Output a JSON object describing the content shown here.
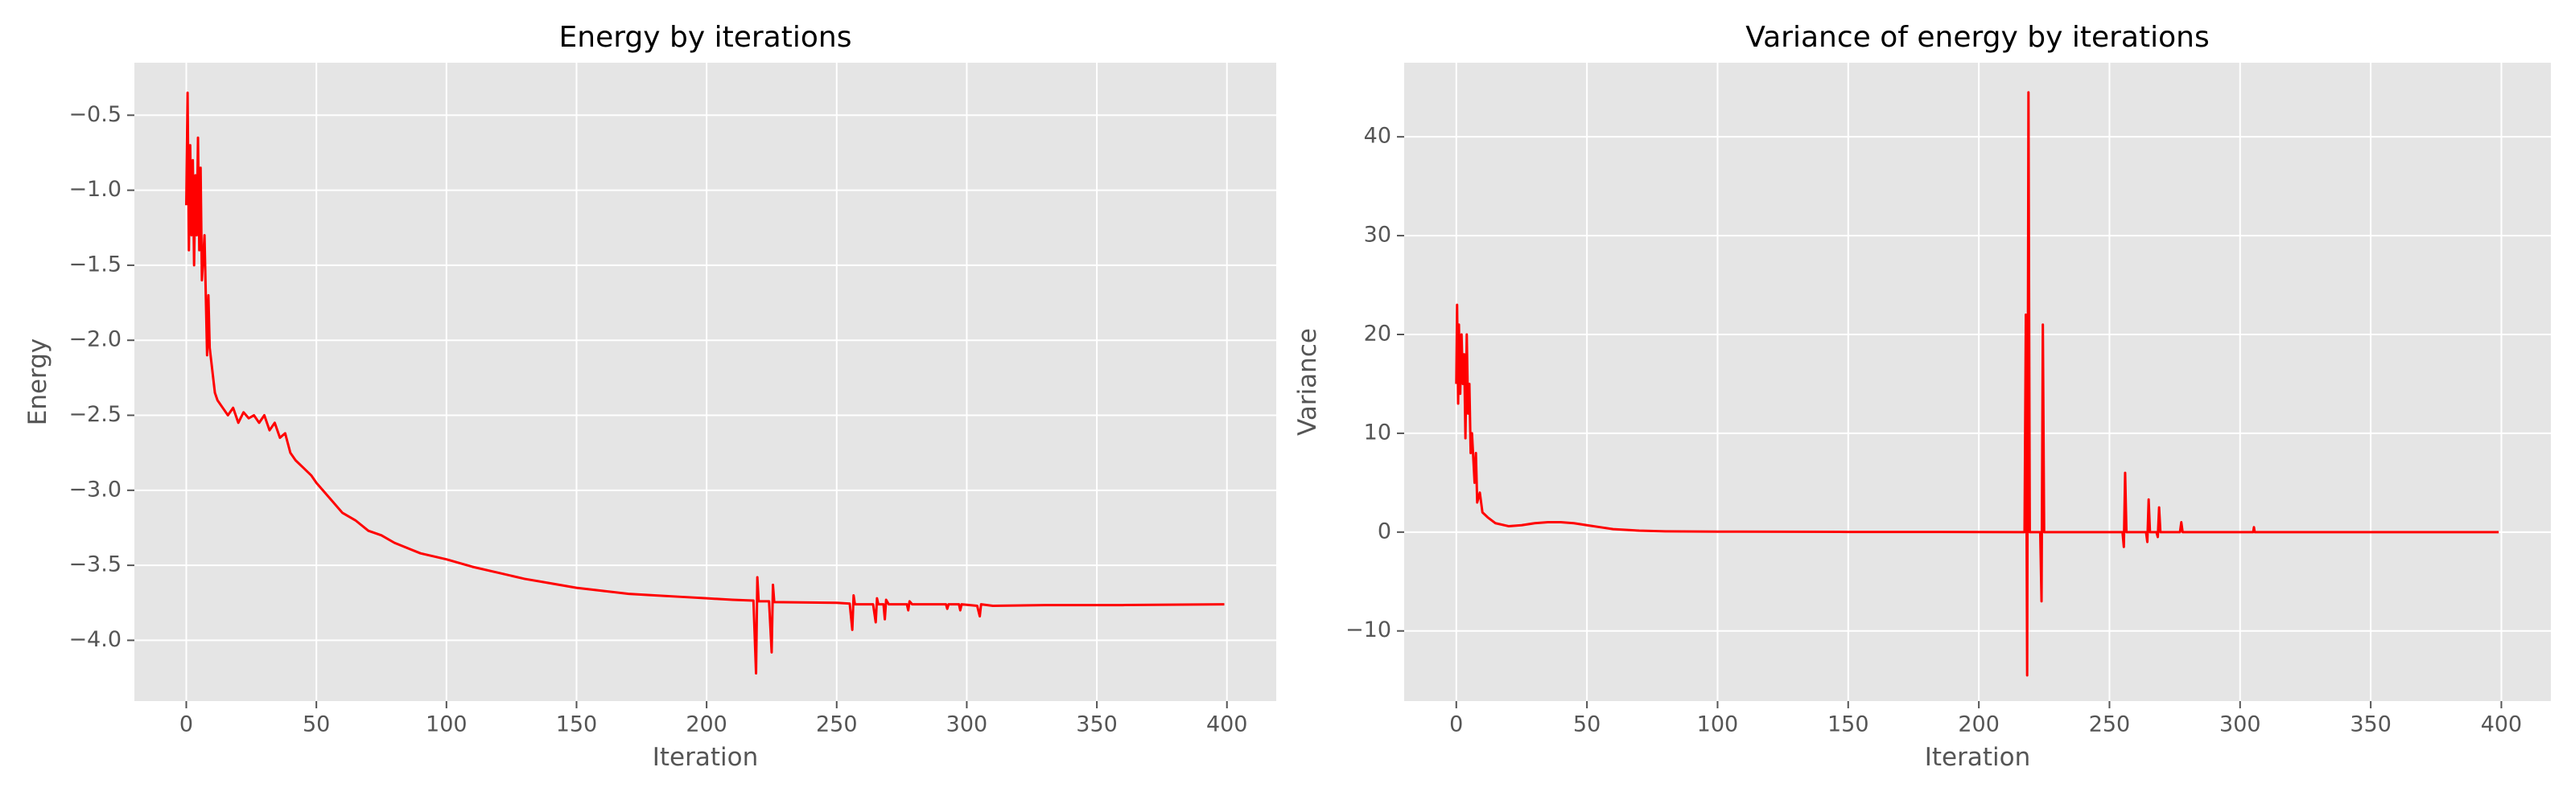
{
  "chart_data": [
    {
      "type": "line",
      "title": "Energy by iterations",
      "xlabel": "Iteration",
      "ylabel": "Energy",
      "xlim": [
        -19.95,
        418.95
      ],
      "ylim": [
        -4.405,
        -0.15
      ],
      "xticks": [
        0,
        50,
        100,
        150,
        200,
        250,
        300,
        350,
        400
      ],
      "yticks": [
        {
          "value": -4.0,
          "label": "−4.0"
        },
        {
          "value": -3.5,
          "label": "−3.5"
        },
        {
          "value": -3.0,
          "label": "−3.0"
        },
        {
          "value": -2.5,
          "label": "−2.5"
        },
        {
          "value": -2.0,
          "label": "−2.0"
        },
        {
          "value": -1.5,
          "label": "−1.5"
        },
        {
          "value": -1.0,
          "label": "−1.0"
        },
        {
          "value": -0.5,
          "label": "−0.5"
        }
      ],
      "grid": true,
      "series": [
        {
          "color": "#ff0000",
          "x": [
            0,
            0.5,
            1,
            1.5,
            2,
            2.5,
            3,
            3.5,
            4,
            4.5,
            5,
            5.5,
            6,
            7,
            8,
            8.5,
            9,
            10,
            11,
            12,
            14,
            16,
            18,
            20,
            22,
            24,
            26,
            28,
            30,
            32,
            34,
            36,
            38,
            40,
            42,
            45,
            48,
            50,
            55,
            60,
            65,
            70,
            75,
            80,
            90,
            100,
            110,
            120,
            130,
            140,
            150,
            160,
            170,
            180,
            190,
            200,
            210,
            218,
            219,
            219.5,
            220,
            224,
            225,
            225.5,
            226,
            250,
            255,
            256,
            256.5,
            257,
            264,
            265,
            265.5,
            266,
            268,
            268.5,
            269,
            270,
            277,
            277.5,
            278,
            279,
            292,
            292.5,
            293,
            297,
            297.5,
            298,
            304,
            305,
            305.5,
            310,
            330,
            360,
            399
          ],
          "values": [
            -1.1,
            -0.35,
            -1.4,
            -0.7,
            -1.3,
            -0.8,
            -1.5,
            -0.9,
            -1.3,
            -0.65,
            -1.4,
            -0.85,
            -1.6,
            -1.3,
            -2.1,
            -1.7,
            -2.05,
            -2.2,
            -2.35,
            -2.4,
            -2.45,
            -2.5,
            -2.45,
            -2.55,
            -2.48,
            -2.52,
            -2.5,
            -2.55,
            -2.5,
            -2.6,
            -2.55,
            -2.65,
            -2.62,
            -2.75,
            -2.8,
            -2.85,
            -2.9,
            -2.95,
            -3.05,
            -3.15,
            -3.2,
            -3.27,
            -3.3,
            -3.35,
            -3.42,
            -3.46,
            -3.51,
            -3.55,
            -3.59,
            -3.62,
            -3.65,
            -3.67,
            -3.69,
            -3.7,
            -3.71,
            -3.72,
            -3.73,
            -3.735,
            -4.22,
            -3.58,
            -3.74,
            -3.74,
            -4.08,
            -3.63,
            -3.745,
            -3.75,
            -3.755,
            -3.93,
            -3.7,
            -3.76,
            -3.76,
            -3.88,
            -3.72,
            -3.76,
            -3.76,
            -3.86,
            -3.73,
            -3.76,
            -3.76,
            -3.8,
            -3.74,
            -3.76,
            -3.76,
            -3.79,
            -3.76,
            -3.76,
            -3.8,
            -3.76,
            -3.77,
            -3.84,
            -3.76,
            -3.77,
            -3.765,
            -3.765,
            -3.76
          ]
        }
      ]
    },
    {
      "type": "line",
      "title": "Variance of energy by iterations",
      "xlabel": "Iteration",
      "ylabel": "Variance",
      "xlim": [
        -19.95,
        418.95
      ],
      "ylim": [
        -17.1,
        47.5
      ],
      "xticks": [
        0,
        50,
        100,
        150,
        200,
        250,
        300,
        350,
        400
      ],
      "yticks": [
        {
          "value": -10,
          "label": "−10"
        },
        0,
        10,
        20,
        30,
        40
      ],
      "grid": true,
      "series": [
        {
          "color": "#ff0000",
          "x": [
            0,
            0.3,
            0.7,
            1,
            1.5,
            2,
            2.5,
            3,
            3.5,
            4,
            4.5,
            5,
            5.5,
            6,
            7,
            7.5,
            8,
            9,
            10,
            12,
            15,
            20,
            25,
            30,
            35,
            40,
            45,
            50,
            55,
            60,
            70,
            80,
            100,
            150,
            200,
            217.5,
            218,
            218.5,
            219,
            219.5,
            223.5,
            224,
            224.5,
            225,
            255,
            255.5,
            256,
            256.5,
            264,
            264.5,
            265,
            265.5,
            268,
            268.5,
            269,
            269.5,
            277,
            277.5,
            278,
            305,
            305.3,
            305.6,
            399
          ],
          "values": [
            15,
            23,
            13,
            21,
            14,
            20,
            15,
            18,
            9.5,
            20,
            12,
            15,
            8,
            10,
            5,
            8,
            3,
            4,
            2,
            1.5,
            0.9,
            0.6,
            0.7,
            0.9,
            1.0,
            1.0,
            0.9,
            0.7,
            0.5,
            0.3,
            0.15,
            0.08,
            0.05,
            0.02,
            0.01,
            0,
            22,
            -14.5,
            44.5,
            0,
            0,
            -7,
            21,
            0,
            0,
            -1.5,
            6,
            0,
            0,
            -1,
            3.3,
            0,
            0,
            -0.5,
            2.5,
            0,
            0,
            1,
            0,
            0,
            0.5,
            0,
            0
          ]
        }
      ]
    }
  ]
}
